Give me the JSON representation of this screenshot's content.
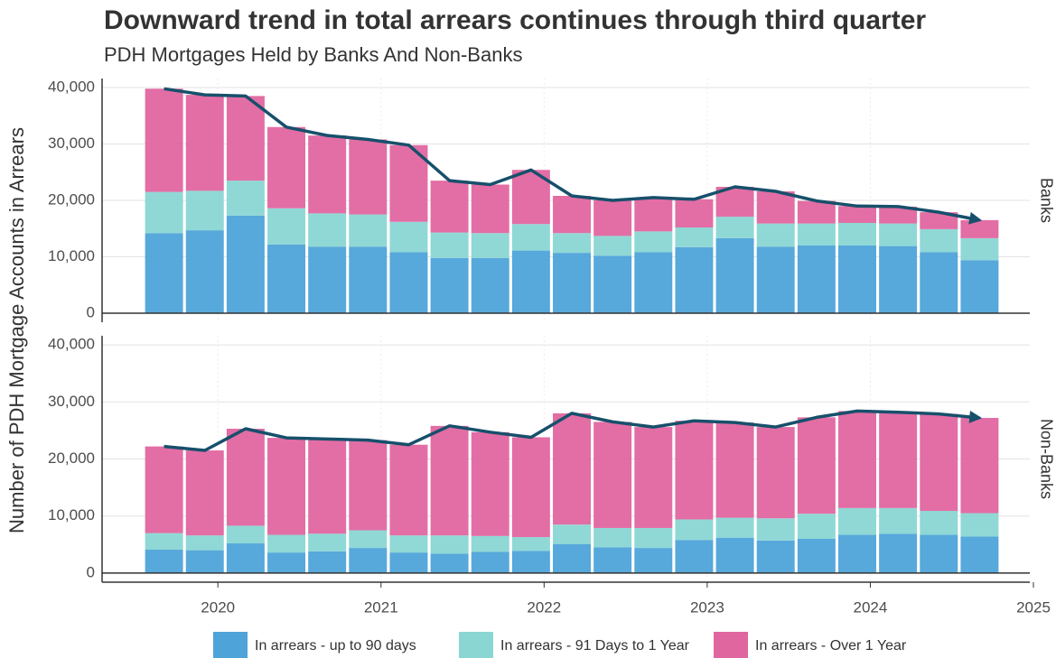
{
  "chart_data": {
    "type": "bar",
    "stacked": true,
    "title": "Downward trend in total arrears continues through third quarter",
    "subtitle": "PDH Mortgages Held by Banks And Non-Banks",
    "y_label": "Number of PDH Mortgage Accounts in Arrears",
    "x": [
      2019.67,
      2019.92,
      2020.17,
      2020.42,
      2020.67,
      2020.92,
      2021.17,
      2021.42,
      2021.67,
      2021.92,
      2022.17,
      2022.42,
      2022.67,
      2022.92,
      2023.17,
      2023.42,
      2023.67,
      2023.92,
      2024.17,
      2024.42,
      2024.67
    ],
    "xlim": [
      2019.29,
      2025.0
    ],
    "xticks": [
      2020,
      2021,
      2022,
      2023,
      2024,
      2025
    ],
    "grid": true,
    "trend_color": "#17506b",
    "legend": "bottom",
    "panels": [
      {
        "label": "Banks",
        "ylim": [
          -1600,
          41600
        ],
        "yticks": [
          0,
          {
            "value": 10000,
            "label": "10,000"
          },
          {
            "value": 20000,
            "label": "20,000"
          },
          {
            "value": 30000,
            "label": "30,000"
          },
          {
            "value": 40000,
            "label": "40,000"
          }
        ],
        "series": [
          {
            "name": "In arrears - up to 90 days",
            "color": "#4ea3d9",
            "values": [
              14200,
              14700,
              17300,
              12200,
              11800,
              11800,
              10800,
              9800,
              9800,
              11100,
              10700,
              10200,
              10800,
              11700,
              13300,
              11800,
              12000,
              12000,
              11900,
              10800,
              9400
            ]
          },
          {
            "name": "In arrears - 91 Days to 1 Year",
            "color": "#8ad6d3",
            "values": [
              7300,
              7000,
              6200,
              6400,
              5900,
              5700,
              5400,
              4500,
              4400,
              4700,
              3500,
              3500,
              3700,
              3500,
              3800,
              4100,
              3900,
              4000,
              4000,
              4100,
              3900
            ]
          },
          {
            "name": "In arrears - Over 1 Year",
            "color": "#e066a0",
            "values": [
              18300,
              17000,
              15000,
              14400,
              13800,
              13300,
              13600,
              9200,
              8600,
              9600,
              6600,
              6300,
              6000,
              5000,
              5300,
              5700,
              4000,
              3000,
              3000,
              3000,
              3200
            ]
          }
        ],
        "trend": [
          39800,
          38700,
          38500,
          33000,
          31500,
          30800,
          29800,
          23500,
          22800,
          25400,
          20800,
          20000,
          20500,
          20200,
          22400,
          21600,
          19900,
          19000,
          18900,
          17900,
          16500
        ]
      },
      {
        "label": "Non-Banks",
        "ylim": [
          -1600,
          41600
        ],
        "yticks": [
          0,
          {
            "value": 10000,
            "label": "10,000"
          },
          {
            "value": 20000,
            "label": "20,000"
          },
          {
            "value": 30000,
            "label": "30,000"
          },
          {
            "value": 40000,
            "label": "40,000"
          }
        ],
        "series": [
          {
            "name": "In arrears - up to 90 days",
            "color": "#4ea3d9",
            "values": [
              4100,
              4000,
              5200,
              3600,
              3800,
              4400,
              3600,
              3400,
              3700,
              3900,
              5100,
              4500,
              4400,
              5800,
              6200,
              5700,
              6000,
              6700,
              6900,
              6700,
              6400
            ]
          },
          {
            "name": "In arrears - 91 Days to 1 Year",
            "color": "#8ad6d3",
            "values": [
              2900,
              2600,
              3100,
              3100,
              3100,
              3100,
              3000,
              3200,
              2800,
              2400,
              3400,
              3400,
              3500,
              3600,
              3500,
              3900,
              4400,
              4700,
              4500,
              4200,
              4100
            ]
          },
          {
            "name": "In arrears - Over 1 Year",
            "color": "#e066a0",
            "values": [
              15200,
              14900,
              17000,
              17000,
              16600,
              15800,
              15900,
              19200,
              18200,
              17500,
              19500,
              18600,
              17700,
              17300,
              16700,
              16000,
              16900,
              17000,
              16800,
              17000,
              16700
            ]
          }
        ],
        "trend": [
          22200,
          21500,
          25300,
          23700,
          23500,
          23300,
          22500,
          25800,
          24700,
          23800,
          28000,
          26500,
          25600,
          26700,
          26400,
          25600,
          27300,
          28400,
          28200,
          27900,
          27200
        ]
      }
    ]
  }
}
